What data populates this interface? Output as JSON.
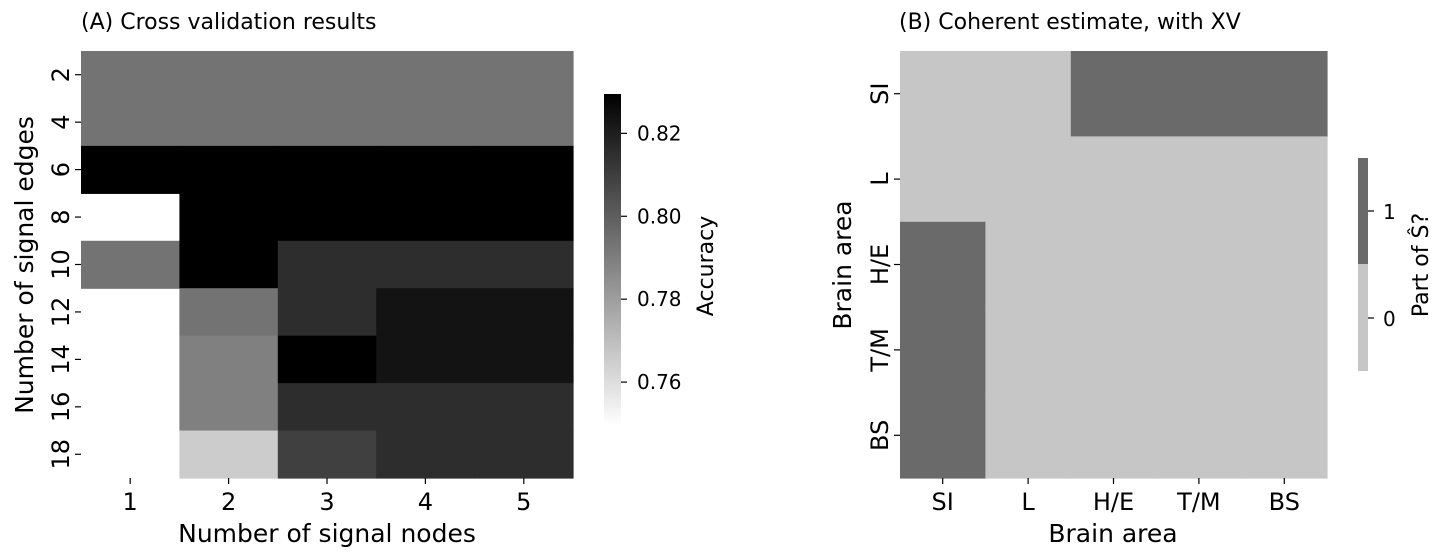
{
  "chart_data": [
    {
      "type": "heatmap",
      "title": "(A) Cross validation results",
      "xlabel": "Number of signal nodes",
      "ylabel": "Number of signal edges",
      "x_categories": [
        "1",
        "2",
        "3",
        "4",
        "5"
      ],
      "y_categories": [
        "2",
        "4",
        "6",
        "8",
        "10",
        "12",
        "14",
        "16",
        "18"
      ],
      "values": [
        [
          0.7934,
          0.7934,
          0.7934,
          0.7934,
          0.7934
        ],
        [
          0.7934,
          0.7934,
          0.7934,
          0.7934,
          0.7934
        ],
        [
          0.8295,
          0.8295,
          0.8295,
          0.8295,
          0.8295
        ],
        [
          null,
          0.8295,
          0.8295,
          0.8295,
          0.8295
        ],
        [
          0.7934,
          0.8295,
          0.8154,
          0.8154,
          0.8154
        ],
        [
          null,
          0.7934,
          0.8154,
          0.8234,
          0.8234
        ],
        [
          null,
          0.7894,
          0.8295,
          0.8234,
          0.8234
        ],
        [
          null,
          0.7894,
          0.8154,
          0.8154,
          0.8154
        ],
        [
          null,
          0.7654,
          0.8094,
          0.8154,
          0.8154
        ]
      ],
      "colorbar": {
        "label": "Accuracy",
        "range": [
          0.7494,
          0.8295
        ],
        "ticks": [
          "0.76",
          "0.78",
          "0.80",
          "0.82"
        ],
        "tick_values": [
          0.76,
          0.78,
          0.8,
          0.82
        ],
        "colormap": "white-to-black"
      }
    },
    {
      "type": "heatmap",
      "title": "(B) Coherent estimate, with XV",
      "xlabel": "Brain area",
      "ylabel": "Brain area",
      "x_categories": [
        "SI",
        "L",
        "H/E",
        "T/M",
        "BS"
      ],
      "y_categories": [
        "SI",
        "L",
        "H/E",
        "T/M",
        "BS"
      ],
      "values": [
        [
          0,
          0,
          1,
          1,
          1
        ],
        [
          0,
          0,
          0,
          0,
          0
        ],
        [
          1,
          0,
          0,
          0,
          0
        ],
        [
          1,
          0,
          0,
          0,
          0
        ],
        [
          1,
          0,
          0,
          0,
          0
        ]
      ],
      "colors": {
        "0": "#c6c6c6",
        "1": "#6a6a6a"
      },
      "colorbar": {
        "label": "Part of Ŝ?",
        "ticks": [
          "0",
          "1"
        ],
        "tick_values": [
          0,
          1
        ]
      }
    }
  ]
}
